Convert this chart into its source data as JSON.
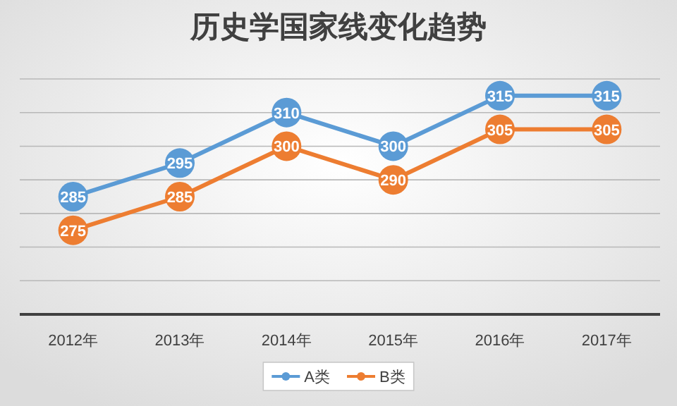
{
  "chart_data": {
    "type": "line",
    "title": "历史学国家线变化趋势",
    "categories": [
      "2012年",
      "2013年",
      "2014年",
      "2015年",
      "2016年",
      "2017年"
    ],
    "series": [
      {
        "name": "A类",
        "color": "#5b9bd5",
        "values": [
          285,
          295,
          310,
          300,
          315,
          315
        ]
      },
      {
        "name": "B类",
        "color": "#ed7d31",
        "values": [
          275,
          285,
          300,
          290,
          305,
          305
        ]
      }
    ],
    "ylim": [
      250,
      320
    ],
    "yticks": [
      {
        "value": 250,
        "label": null
      },
      {
        "value": 260,
        "label": null
      },
      {
        "value": 270,
        "label": null
      },
      {
        "value": 280,
        "label": null
      },
      {
        "value": 290,
        "label": null
      },
      {
        "value": 300,
        "label": null
      },
      {
        "value": 310,
        "label": null
      },
      {
        "value": 320,
        "label": null
      }
    ],
    "tick_labels": "x",
    "grid": "y",
    "marker": "circle",
    "line_style": "solid",
    "data_labels": true,
    "legend": "bottom"
  }
}
